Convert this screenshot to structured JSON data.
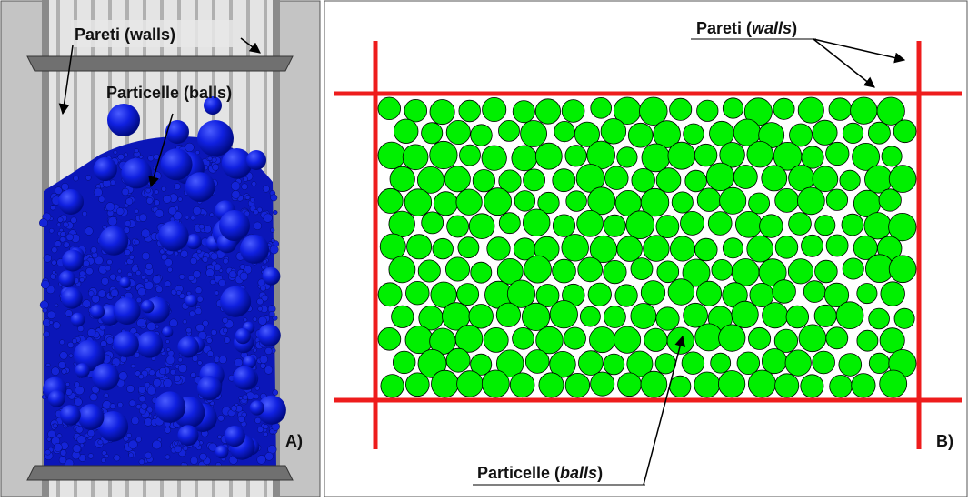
{
  "panel_a": {
    "walls_label": "Pareti (walls)",
    "balls_label": "Particelle (balls)",
    "panel_label": "A)"
  },
  "panel_b": {
    "walls_label": {
      "prefix": "Pareti (",
      "italic": "walls",
      "suffix": ")"
    },
    "balls_label": {
      "prefix": "Particelle (",
      "italic": "balls",
      "suffix": ")"
    },
    "panel_label": "B)"
  }
}
